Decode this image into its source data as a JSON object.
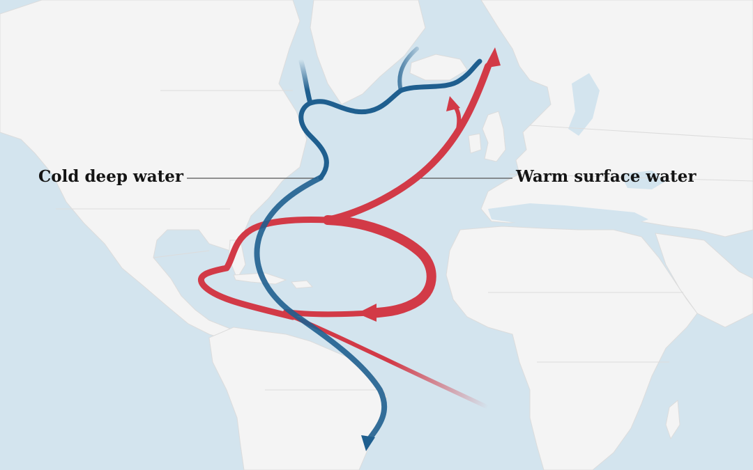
{
  "labels": {
    "cold": "Cold deep water",
    "warm": "Warm surface water"
  },
  "colors": {
    "ocean": "#d3e4ee",
    "land": "#f4f4f4",
    "border": "#dcdcdc",
    "cold_current": "#1f5f8f",
    "warm_current": "#d23a47",
    "leader_line": "#555555",
    "label_text": "#141414"
  },
  "icons": [
    "arrow-head-icon"
  ]
}
